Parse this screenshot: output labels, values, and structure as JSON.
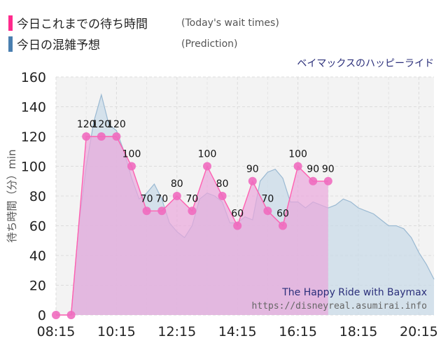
{
  "legend": [
    {
      "label": "今日これまでの待ち時間",
      "sublabel": "(Today's wait times)",
      "color": "#ff2a8c"
    },
    {
      "label": "今日の混雑予想",
      "sublabel": "(Prediction)",
      "color": "#4a7fb0"
    }
  ],
  "subtitle": "ベイマックスのハッピーライド",
  "watermark": {
    "line1": "The Happy Ride with Baymax",
    "line2": "https://disneyreal.asumirai.info"
  },
  "chart_data": {
    "type": "area",
    "ylabel": "待ち時間（分）min",
    "ylim": [
      0,
      160
    ],
    "xlim": [
      "08:15",
      "20:45"
    ],
    "yticks": [
      "0",
      "20",
      "40",
      "60",
      "80",
      "100",
      "120",
      "140",
      "160"
    ],
    "xticks": [
      "08:15",
      "10:15",
      "12:15",
      "14:15",
      "16:15",
      "18:15",
      "20:15"
    ],
    "series": [
      {
        "name": "今日これまでの待ち時間",
        "color": "#ff5fb0",
        "x": [
          "08:15",
          "08:45",
          "09:15",
          "09:45",
          "10:15",
          "10:45",
          "11:15",
          "11:45",
          "12:15",
          "12:45",
          "13:15",
          "13:45",
          "14:15",
          "14:45",
          "15:15",
          "15:45",
          "16:15",
          "16:45",
          "17:15"
        ],
        "values": [
          0,
          0,
          120,
          120,
          120,
          100,
          70,
          70,
          80,
          70,
          100,
          80,
          60,
          90,
          70,
          60,
          100,
          90,
          90
        ],
        "labels": [
          "",
          "",
          "120",
          "120",
          "120",
          "100",
          "70",
          "70",
          "80",
          "70",
          "100",
          "80",
          "60",
          "90",
          "70",
          "60",
          "100",
          "90",
          "90"
        ]
      },
      {
        "name": "今日の混雑予想",
        "color": "#9ab9d2",
        "x": [
          "08:15",
          "08:45",
          "09:00",
          "09:15",
          "09:30",
          "09:45",
          "10:00",
          "10:15",
          "10:30",
          "10:45",
          "11:00",
          "11:15",
          "11:30",
          "11:45",
          "12:00",
          "12:15",
          "12:30",
          "12:45",
          "13:00",
          "13:15",
          "13:30",
          "13:45",
          "14:00",
          "14:15",
          "14:30",
          "14:45",
          "15:00",
          "15:15",
          "15:30",
          "15:45",
          "16:00",
          "16:15",
          "16:30",
          "16:45",
          "17:00",
          "17:15",
          "17:30",
          "17:45",
          "18:00",
          "18:15",
          "18:30",
          "18:45",
          "19:00",
          "19:15",
          "19:30",
          "19:45",
          "20:00",
          "20:15",
          "20:30",
          "20:45"
        ],
        "values": [
          0,
          0,
          60,
          100,
          130,
          148,
          128,
          124,
          110,
          92,
          78,
          82,
          88,
          78,
          62,
          56,
          52,
          60,
          78,
          82,
          80,
          76,
          62,
          62,
          66,
          64,
          90,
          96,
          98,
          92,
          76,
          76,
          72,
          76,
          74,
          72,
          74,
          78,
          76,
          72,
          70,
          68,
          64,
          60,
          60,
          58,
          52,
          42,
          34,
          24
        ]
      }
    ],
    "grid": true
  }
}
